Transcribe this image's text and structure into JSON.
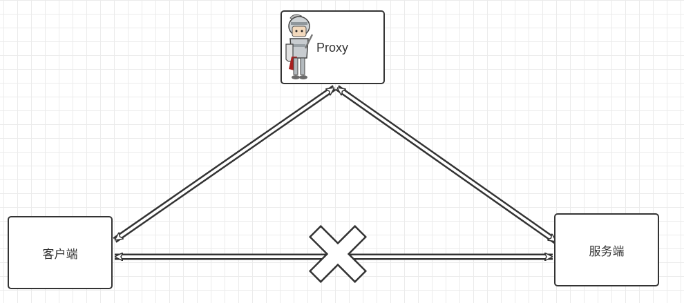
{
  "nodes": {
    "proxy": {
      "label": "Proxy",
      "icon": "knight-icon"
    },
    "client": {
      "label": "客户端"
    },
    "server": {
      "label": "服务端"
    }
  },
  "edges": [
    {
      "from": "client",
      "to": "proxy",
      "style": "double-line-arrow",
      "bidirectional": true,
      "blocked": false
    },
    {
      "from": "proxy",
      "to": "server",
      "style": "double-line-arrow",
      "bidirectional": true,
      "blocked": false
    },
    {
      "from": "client",
      "to": "server",
      "style": "double-line-arrow",
      "bidirectional": true,
      "blocked": true,
      "blocked_marker": "cross-icon"
    }
  ],
  "colors": {
    "stroke": "#333333",
    "grid": "#ebebeb",
    "background": "#ffffff",
    "node_fill": "#ffffff"
  }
}
